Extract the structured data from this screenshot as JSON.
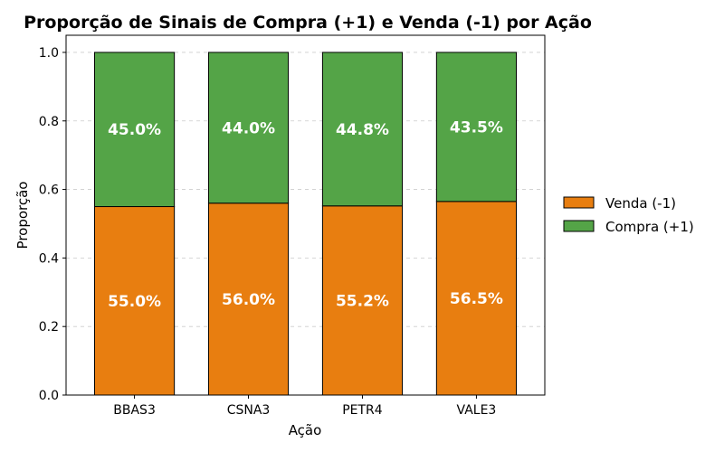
{
  "chart_data": {
    "type": "bar",
    "stacked": true,
    "title": "Proporção de Sinais de Compra (+1) e Venda (-1) por Ação",
    "xlabel": "Ação",
    "ylabel": "Proporção",
    "ylim": [
      0,
      1.05
    ],
    "yticks": [
      "0.0",
      "0.2",
      "0.4",
      "0.6",
      "0.8",
      "1.0"
    ],
    "grid": true,
    "legend_position": "right",
    "categories": [
      "BBAS3",
      "CSNA3",
      "PETR4",
      "VALE3"
    ],
    "series": [
      {
        "name": "Venda (-1)",
        "color": "#e87e10",
        "values": [
          0.55,
          0.56,
          0.552,
          0.565
        ],
        "labels": [
          "55.0%",
          "56.0%",
          "55.2%",
          "56.5%"
        ]
      },
      {
        "name": "Compra (+1)",
        "color": "#54a447",
        "values": [
          0.45,
          0.44,
          0.448,
          0.435
        ],
        "labels": [
          "45.0%",
          "44.0%",
          "44.8%",
          "43.5%"
        ]
      }
    ]
  }
}
